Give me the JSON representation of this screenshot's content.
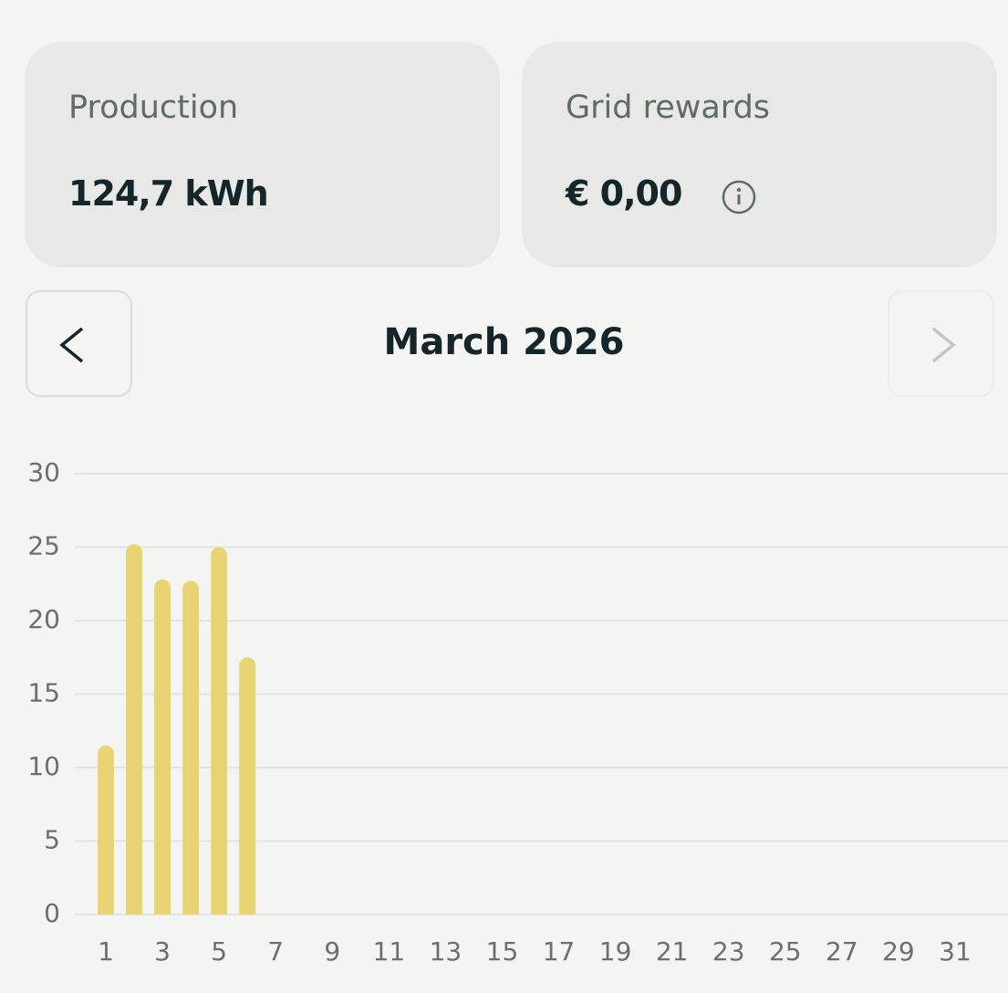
{
  "cards": [
    {
      "label": "Production",
      "value": "124,7 kWh"
    },
    {
      "label": "Grid rewards",
      "value": "€ 0,00"
    }
  ],
  "period": {
    "title": "March 2026"
  },
  "chart_data": {
    "type": "bar",
    "categories": [
      "1",
      null,
      "3",
      null,
      "5",
      null,
      "7",
      null,
      "9",
      null,
      "11",
      null,
      "13",
      null,
      "15",
      null,
      "17",
      null,
      "19",
      null,
      "21",
      null,
      "23",
      null,
      "25",
      null,
      "27",
      null,
      "29",
      null,
      "31"
    ],
    "values": [
      11.5,
      25.2,
      22.8,
      22.7,
      25.0,
      17.5,
      null,
      null,
      null,
      null,
      null,
      null,
      null,
      null,
      null,
      null,
      null,
      null,
      null,
      null,
      null,
      null,
      null,
      null,
      null,
      null,
      null,
      null,
      null,
      null,
      null
    ],
    "color": "#e8d473",
    "ylim": [
      0,
      30
    ],
    "yticks": [
      0,
      5,
      10,
      15,
      20,
      25,
      30
    ],
    "grid": true
  }
}
